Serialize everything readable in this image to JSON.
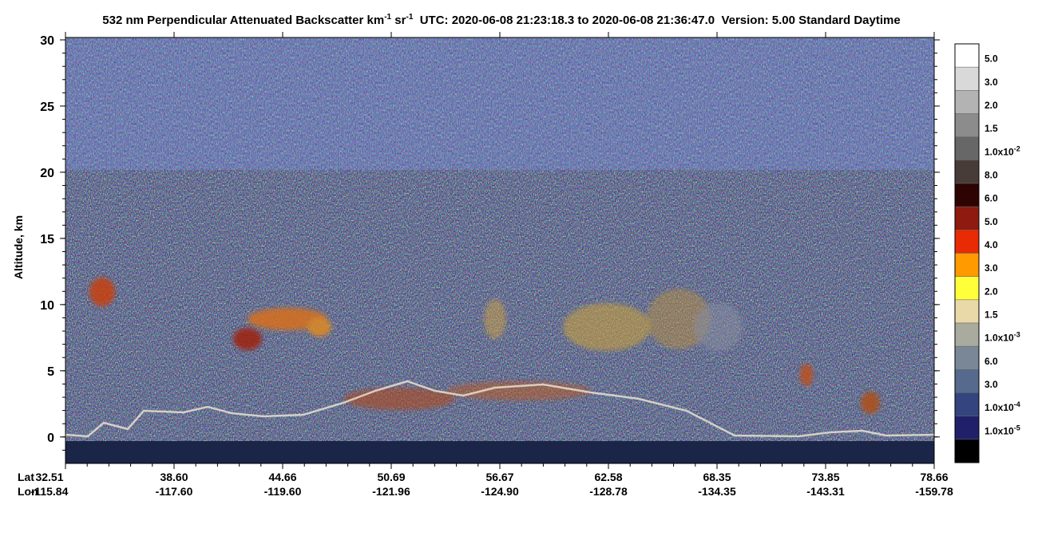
{
  "chart_data": {
    "type": "heatmap",
    "title": {
      "text1": "532 nm Perpendicular Attenuated Backscatter km",
      "sup1": "-1",
      "text2": " sr",
      "sup2": "-1",
      "text3": "  UTC: 2020-06-08 21:23:18.3 to 2020-06-08 21:36:47.0  Version: 5.00 Standard Daytime"
    },
    "y_label": "Altitude, km",
    "ylim": [
      -2,
      30
    ],
    "yticks": [
      0,
      5,
      10,
      15,
      20,
      25,
      30
    ],
    "x_rows": [
      {
        "name": "Lat",
        "labels": [
          "32.51",
          "38.60",
          "44.66",
          "50.69",
          "56.67",
          "62.58",
          "68.35",
          "73.85",
          "78.66"
        ]
      },
      {
        "name": "Lon",
        "labels": [
          "-115.84",
          "-117.60",
          "-119.60",
          "-121.96",
          "-124.90",
          "-128.78",
          "-134.35",
          "-143.31",
          "-159.78"
        ]
      }
    ],
    "colorbar": [
      {
        "color": "#ffffff",
        "label": {
          "base": "5.0"
        }
      },
      {
        "color": "#d9d9d9",
        "label": {
          "base": "3.0"
        }
      },
      {
        "color": "#b3b3b3",
        "label": {
          "base": "2.0"
        }
      },
      {
        "color": "#8c8c8c",
        "label": {
          "base": "1.5"
        }
      },
      {
        "color": "#676767",
        "label": {
          "base": "1.0x10",
          "sup": "-2"
        }
      },
      {
        "color": "#473c38",
        "label": {
          "base": "8.0"
        }
      },
      {
        "color": "#2e0403",
        "label": {
          "base": "6.0"
        }
      },
      {
        "color": "#8e1a10",
        "label": {
          "base": "5.0"
        }
      },
      {
        "color": "#e82a05",
        "label": {
          "base": "4.0"
        }
      },
      {
        "color": "#ff9a00",
        "label": {
          "base": "3.0"
        }
      },
      {
        "color": "#ffff3a",
        "label": {
          "base": "2.0"
        }
      },
      {
        "color": "#e9d9a8",
        "label": {
          "base": "1.5"
        }
      },
      {
        "color": "#a9ab9f",
        "label": {
          "base": "1.0x10",
          "sup": "-3"
        }
      },
      {
        "color": "#7a8797",
        "label": {
          "base": "6.0"
        }
      },
      {
        "color": "#566a8e",
        "label": {
          "base": "3.0"
        }
      },
      {
        "color": "#33447e",
        "label": {
          "base": "1.0x10",
          "sup": "-4"
        }
      },
      {
        "color": "#20206a",
        "label": {
          "base": "1.0x10",
          "sup": "-5"
        }
      },
      {
        "color": "#000000",
        "label": null
      }
    ]
  }
}
